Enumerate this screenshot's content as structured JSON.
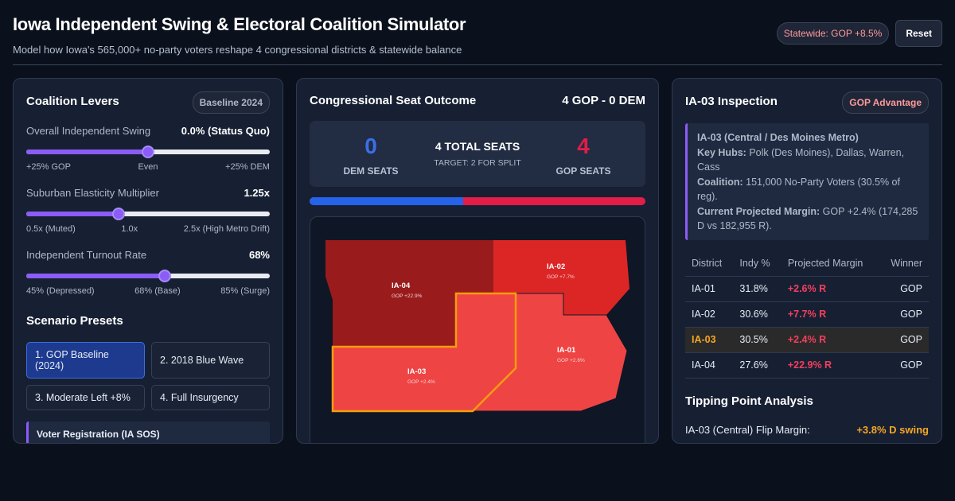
{
  "header": {
    "title": "Iowa Independent Swing & Electoral Coalition Simulator",
    "subtitle": "Model how Iowa's 565,000+ no-party voters reshape 4 congressional districts & statewide balance",
    "statewide": "Statewide: GOP +8.5%",
    "reset": "Reset"
  },
  "levers": {
    "title": "Coalition Levers",
    "badge": "Baseline 2024",
    "items": [
      {
        "label": "Overall Independent Swing",
        "value": "0.0% (Status Quo)",
        "level": 0.5,
        "ticks": [
          "+25% GOP",
          "Even",
          "+25% DEM"
        ]
      },
      {
        "label": "Suburban Elasticity Multiplier",
        "value": "1.25x",
        "level": 0.38,
        "ticks": [
          "0.5x (Muted)",
          "1.0x",
          "2.5x (High Metro Drift)"
        ]
      },
      {
        "label": "Independent Turnout Rate",
        "value": "68%",
        "level": 0.57,
        "ticks": [
          "45% (Depressed)",
          "68% (Base)",
          "85% (Surge)"
        ]
      }
    ]
  },
  "presets": {
    "title": "Scenario Presets",
    "items": [
      "1. GOP Baseline (2024)",
      "2. 2018 Blue Wave",
      "3. Moderate Left +8%",
      "4. Full Insurgency"
    ],
    "note": "Voter Registration (IA SOS)"
  },
  "seats": {
    "title": "Congressional Seat Outcome",
    "summary": "4 GOP - 0 DEM",
    "dem_count": "0",
    "dem_label": "DEM SEATS",
    "gop_count": "4",
    "gop_label": "GOP SEATS",
    "total": "4 TOTAL SEATS",
    "target": "TARGET: 2 FOR SPLIT",
    "dem_share": 0.457,
    "colors": {
      "dem": "#2563eb",
      "gop": "#e11d48"
    }
  },
  "map": {
    "districts": [
      {
        "name": "IA-04",
        "margin": "GOP +22.9%"
      },
      {
        "name": "IA-02",
        "margin": "GOP +7.7%"
      },
      {
        "name": "IA-03",
        "margin": "GOP +2.4%"
      },
      {
        "name": "IA-01",
        "margin": "GOP +2.6%"
      }
    ]
  },
  "inspection": {
    "title": "IA-03 Inspection",
    "badge": "GOP Advantage",
    "callout_title": "IA-03 (Central / Des Moines Metro)",
    "key_hubs_label": "Key Hubs:",
    "key_hubs": "Polk (Des Moines), Dallas, Warren, Cass",
    "coalition_label": "Coalition:",
    "coalition": "151,000 No-Party Voters (30.5% of reg).",
    "margin_label": "Current Projected Margin:",
    "margin": "GOP +2.4% (174,285 D vs 182,955 R)."
  },
  "table": {
    "headers": [
      "District",
      "Indy %",
      "Projected Margin",
      "Winner"
    ],
    "rows": [
      [
        "IA-01",
        "31.8%",
        "+2.6% R",
        "GOP"
      ],
      [
        "IA-02",
        "30.6%",
        "+7.7% R",
        "GOP"
      ],
      [
        "IA-03",
        "30.5%",
        "+2.4% R",
        "GOP"
      ],
      [
        "IA-04",
        "27.6%",
        "+22.9% R",
        "GOP"
      ]
    ]
  },
  "tipping": {
    "title": "Tipping Point Analysis",
    "label": "IA-03 (Central) Flip Margin:",
    "value": "+3.8% D swing"
  }
}
